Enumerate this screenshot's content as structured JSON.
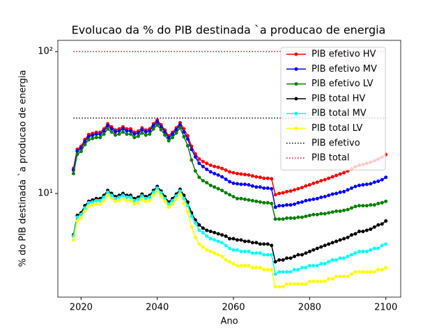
{
  "chart_data": {
    "type": "line",
    "title": "Evolucao da % do PIB destinada `a producao de energia",
    "x_label": "Ano",
    "y_label": "% do PIB destinada `a producao de energia",
    "y_scale": "log",
    "xlim": [
      2013.9,
      2103.9
    ],
    "ylim": [
      1.86,
      120
    ],
    "xticks": [
      2020,
      2040,
      2060,
      2080,
      2100
    ],
    "yticks": [
      {
        "value": 10,
        "label": "10¹"
      },
      {
        "value": 100,
        "label": "10²"
      }
    ],
    "legend": "upper right",
    "x": [
      2018,
      2019,
      2020,
      2021,
      2022,
      2023,
      2024,
      2025,
      2026,
      2027,
      2028,
      2029,
      2030,
      2031,
      2032,
      2033,
      2034,
      2035,
      2036,
      2037,
      2038,
      2039,
      2040,
      2041,
      2042,
      2043,
      2044,
      2045,
      2046,
      2047,
      2048,
      2049,
      2050,
      2051,
      2052,
      2053,
      2054,
      2055,
      2056,
      2057,
      2058,
      2059,
      2060,
      2061,
      2062,
      2063,
      2064,
      2065,
      2066,
      2067,
      2068,
      2069,
      2070,
      2071,
      2072,
      2073,
      2074,
      2075,
      2076,
      2077,
      2078,
      2079,
      2080,
      2081,
      2082,
      2083,
      2084,
      2085,
      2086,
      2087,
      2088,
      2089,
      2090,
      2091,
      2092,
      2093,
      2094,
      2095,
      2096,
      2097,
      2098,
      2099,
      2100
    ],
    "series": [
      {
        "name": "PIB efetivo HV",
        "color": "#ff0000",
        "marker": true,
        "values": [
          15,
          20.5,
          21.5,
          24,
          26,
          26.5,
          27,
          27,
          28.5,
          31,
          29.5,
          28,
          28.5,
          29.5,
          28.5,
          28.5,
          27,
          27.5,
          29,
          28,
          28.5,
          31,
          33,
          30.5,
          28,
          25.5,
          27,
          29,
          31.5,
          28.5,
          25.5,
          21.5,
          19,
          17.5,
          16.8,
          16.3,
          15.8,
          15.5,
          15.3,
          15,
          14.6,
          14.2,
          14,
          13.8,
          13.7,
          13.6,
          13.5,
          13.3,
          13.1,
          13,
          12.8,
          12.8,
          12.7,
          9.8,
          10,
          10.1,
          10.3,
          10.4,
          10.6,
          10.8,
          11,
          11.3,
          11.5,
          11.8,
          12,
          12.3,
          12.5,
          12.8,
          13.1,
          13.4,
          13.7,
          14,
          14.4,
          14.9,
          15.4,
          15.8,
          16,
          16.3,
          16.6,
          17,
          17.5,
          18,
          18.8
        ]
      },
      {
        "name": "PIB efetivo MV",
        "color": "#0000ff",
        "marker": true,
        "values": [
          14.6,
          19.9,
          20.9,
          23.3,
          25.2,
          25.7,
          26.2,
          26.2,
          27.6,
          30.1,
          28.6,
          27.2,
          27.6,
          28.6,
          27.6,
          27.6,
          26.2,
          26.7,
          28.1,
          27.2,
          27.6,
          30.1,
          32.0,
          29.6,
          27.2,
          24.7,
          26.2,
          28.1,
          30.6,
          27.1,
          24.2,
          20.4,
          18.1,
          16.3,
          15.5,
          14.8,
          14.2,
          13.8,
          13.5,
          13.1,
          12.6,
          12.1,
          11.8,
          11.7,
          11.6,
          11.6,
          11.5,
          11.3,
          11.1,
          11.1,
          10.9,
          10.9,
          10.8,
          8.0,
          8.2,
          8.2,
          8.3,
          8.3,
          8.4,
          8.6,
          8.7,
          8.9,
          9.0,
          9.1,
          9.2,
          9.4,
          9.5,
          9.7,
          9.9,
          10.0,
          10.2,
          10.3,
          10.6,
          10.9,
          11.2,
          11.4,
          11.5,
          11.6,
          11.7,
          12.0,
          12.2,
          12.5,
          13.0
        ]
      },
      {
        "name": "PIB efetivo LV",
        "color": "#008000",
        "marker": true,
        "values": [
          13.8,
          18.9,
          19.8,
          22.1,
          23.9,
          24.4,
          24.8,
          24.8,
          26.2,
          28.5,
          27.1,
          25.8,
          26.2,
          27.1,
          26.2,
          26.2,
          24.8,
          25.3,
          26.7,
          25.8,
          26.2,
          28.5,
          30.4,
          28.1,
          25.8,
          23.5,
          24.8,
          26.7,
          29.0,
          25.1,
          21.7,
          17.2,
          14.4,
          13.0,
          12.3,
          11.9,
          11.4,
          11.1,
          10.8,
          10.5,
          10.1,
          9.8,
          9.5,
          9.2,
          9.2,
          9.1,
          9.0,
          8.9,
          8.8,
          8.7,
          8.6,
          8.6,
          8.5,
          6.6,
          6.6,
          6.6,
          6.7,
          6.7,
          6.7,
          6.8,
          6.8,
          6.9,
          7.0,
          7.1,
          7.1,
          7.2,
          7.2,
          7.3,
          7.4,
          7.5,
          7.5,
          7.6,
          7.7,
          7.9,
          8.1,
          8.2,
          8.2,
          8.2,
          8.3,
          8.3,
          8.5,
          8.6,
          8.8
        ]
      },
      {
        "name": "PIB total HV",
        "color": "#000000",
        "marker": true,
        "values": [
          5.1,
          7.0,
          7.3,
          8.2,
          8.8,
          9.0,
          9.2,
          9.2,
          9.7,
          10.5,
          10.0,
          9.5,
          9.7,
          10.0,
          9.7,
          9.7,
          9.2,
          9.4,
          9.9,
          9.5,
          9.7,
          10.5,
          11.2,
          10.4,
          9.5,
          8.7,
          9.2,
          9.9,
          10.7,
          9.7,
          8.7,
          7.3,
          6.5,
          6.0,
          5.7,
          5.5,
          5.4,
          5.3,
          5.2,
          5.1,
          5.0,
          4.8,
          4.8,
          4.7,
          4.7,
          4.6,
          4.6,
          4.5,
          4.5,
          4.4,
          4.4,
          4.4,
          4.3,
          3.3,
          3.4,
          3.4,
          3.5,
          3.5,
          3.6,
          3.7,
          3.7,
          3.8,
          3.9,
          4.0,
          4.1,
          4.2,
          4.3,
          4.4,
          4.5,
          4.6,
          4.7,
          4.8,
          4.9,
          5.1,
          5.2,
          5.4,
          5.4,
          5.5,
          5.6,
          5.8,
          6.0,
          6.1,
          6.4
        ]
      },
      {
        "name": "PIB total MV",
        "color": "#00ffff",
        "marker": true,
        "values": [
          5.0,
          6.8,
          7.1,
          7.9,
          8.6,
          8.7,
          8.9,
          8.9,
          9.4,
          10.2,
          9.7,
          9.2,
          9.4,
          9.7,
          9.4,
          9.4,
          8.9,
          9.1,
          9.6,
          9.2,
          9.4,
          10.2,
          10.9,
          10.1,
          9.2,
          8.4,
          8.9,
          9.6,
          10.4,
          9.2,
          8.2,
          6.9,
          6.2,
          5.5,
          5.3,
          5.0,
          4.8,
          4.7,
          4.6,
          4.5,
          4.3,
          4.1,
          4.0,
          4.0,
          3.9,
          3.9,
          3.9,
          3.8,
          3.8,
          3.8,
          3.7,
          3.7,
          3.7,
          2.7,
          2.8,
          2.8,
          2.8,
          2.8,
          2.9,
          2.9,
          3.0,
          3.0,
          3.1,
          3.1,
          3.1,
          3.2,
          3.2,
          3.3,
          3.4,
          3.4,
          3.5,
          3.5,
          3.6,
          3.7,
          3.8,
          3.9,
          3.9,
          3.9,
          4.0,
          4.1,
          4.1,
          4.3,
          4.4
        ]
      },
      {
        "name": "PIB total LV",
        "color": "#ffff00",
        "marker": true,
        "values": [
          4.7,
          6.4,
          6.7,
          7.5,
          8.1,
          8.3,
          8.4,
          8.4,
          8.9,
          9.7,
          9.2,
          8.8,
          8.9,
          9.2,
          8.9,
          8.9,
          8.4,
          8.6,
          9.1,
          8.8,
          8.9,
          9.7,
          10.3,
          9.6,
          8.8,
          8.0,
          8.4,
          9.1,
          9.9,
          8.5,
          7.4,
          5.8,
          4.9,
          4.4,
          4.2,
          4.0,
          3.9,
          3.8,
          3.7,
          3.6,
          3.4,
          3.3,
          3.2,
          3.1,
          3.1,
          3.1,
          3.1,
          3.0,
          3.0,
          3.0,
          2.9,
          2.9,
          2.9,
          2.2,
          2.2,
          2.2,
          2.3,
          2.3,
          2.3,
          2.3,
          2.3,
          2.3,
          2.4,
          2.4,
          2.4,
          2.4,
          2.4,
          2.5,
          2.5,
          2.6,
          2.6,
          2.6,
          2.6,
          2.7,
          2.8,
          2.8,
          2.8,
          2.8,
          2.8,
          2.8,
          2.9,
          2.9,
          3.0
        ]
      },
      {
        "name": "PIB efetivo",
        "color": "#000000",
        "marker": false,
        "linestyle": "dotted",
        "x": [
          2018,
          2100
        ],
        "values": [
          34,
          34
        ]
      },
      {
        "name": "PIB total",
        "color": "#ff0000",
        "marker": false,
        "linestyle": "dotted",
        "x": [
          2018,
          2100
        ],
        "values": [
          100,
          100
        ]
      }
    ]
  }
}
